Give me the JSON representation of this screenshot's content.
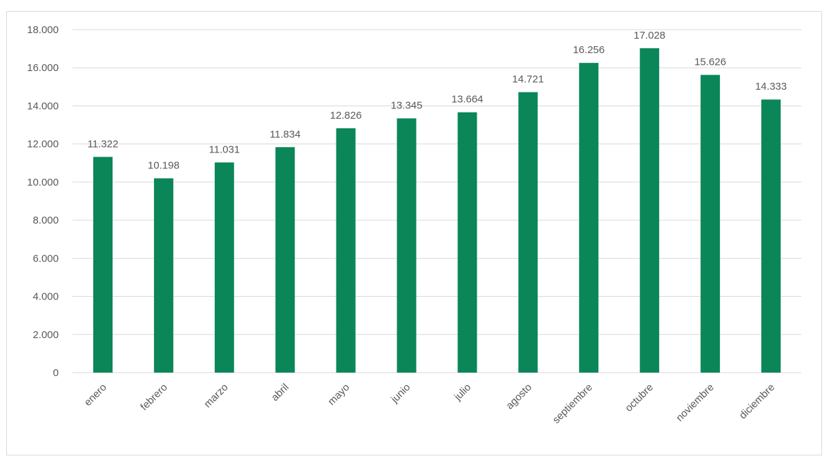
{
  "chart_data": {
    "type": "bar",
    "title": "",
    "xlabel": "",
    "ylabel": "",
    "categories": [
      "enero",
      "febrero",
      "marzo",
      "abril",
      "mayo",
      "junio",
      "julio",
      "agosto",
      "septiembre",
      "octubre",
      "noviembre",
      "diciembre"
    ],
    "values": [
      11322,
      10198,
      11031,
      11834,
      12826,
      13345,
      13664,
      14721,
      16256,
      17028,
      15626,
      14333
    ],
    "value_labels": [
      "11.322",
      "10.198",
      "11.031",
      "11.834",
      "12.826",
      "13.345",
      "13.664",
      "14.721",
      "16.256",
      "17.028",
      "15.626",
      "14.333"
    ],
    "ylim": [
      0,
      18000
    ],
    "yticks": [
      0,
      2000,
      4000,
      6000,
      8000,
      10000,
      12000,
      14000,
      16000,
      18000
    ],
    "ytick_labels": [
      "0",
      "2.000",
      "4.000",
      "6.000",
      "8.000",
      "10.000",
      "12.000",
      "14.000",
      "16.000",
      "18.000"
    ],
    "grid": true,
    "legend": "none",
    "bar_color": "#0b8659",
    "grid_color": "#d9d9d9"
  }
}
